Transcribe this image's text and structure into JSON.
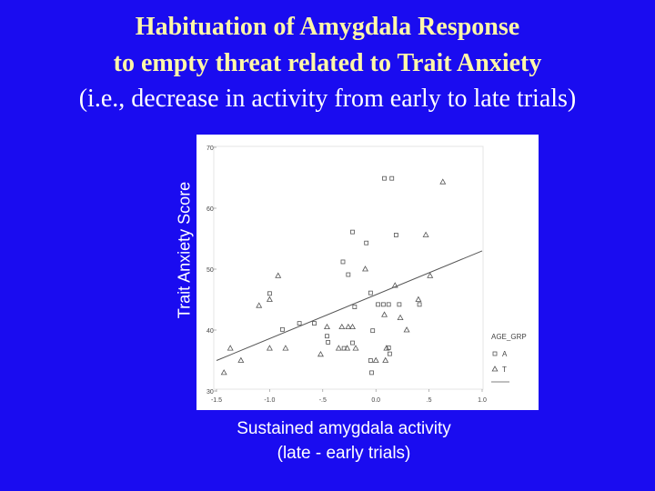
{
  "slide": {
    "title_line1": "Habituation of Amygdala Response",
    "title_line2": "to empty threat related to Trait Anxiety",
    "title_line3": "(i.e., decrease in activity from early to late trials)",
    "xlabel_line1": "Sustained amygdala activity",
    "xlabel_line2": "(late - early trials)",
    "ylabel": "Trait Anxiety Score"
  },
  "colors": {
    "background": "#1a0cf0",
    "title": "#fff7a8",
    "plot_bg": "#ffffff",
    "marker": "#555555"
  },
  "chart_data": {
    "type": "scatter",
    "title": "",
    "xlabel": "Sustained amygdala activity (late - early trials)",
    "ylabel": "Trait Anxiety Score",
    "xlim": [
      -1.5,
      1.0
    ],
    "ylim": [
      30,
      70
    ],
    "xticks": [
      -1.5,
      -1.0,
      -0.5,
      0.0,
      0.5,
      1.0
    ],
    "xtick_labels": [
      "-1.5",
      "-1.0",
      "-.5",
      "0.0",
      ".5",
      "1.0"
    ],
    "yticks": [
      30,
      40,
      50,
      60,
      70
    ],
    "ytick_labels": [
      "30",
      "40",
      "50",
      "60",
      "70"
    ],
    "legend": {
      "title": "AGE_GRP",
      "placement": "bottom-right",
      "entries": [
        "A",
        "T"
      ]
    },
    "series": [
      {
        "name": "A",
        "marker": "square",
        "points": [
          [
            0.08,
            64.9
          ],
          [
            0.15,
            64.9
          ],
          [
            0.19,
            55.6
          ],
          [
            -0.22,
            56.1
          ],
          [
            -0.09,
            54.3
          ],
          [
            -0.31,
            51.2
          ],
          [
            -0.26,
            49.1
          ],
          [
            -1.0,
            46.0
          ],
          [
            -0.05,
            46.1
          ],
          [
            0.02,
            44.2
          ],
          [
            0.07,
            44.2
          ],
          [
            0.12,
            44.2
          ],
          [
            0.22,
            44.2
          ],
          [
            0.41,
            44.2
          ],
          [
            -0.88,
            40.1
          ],
          [
            -0.72,
            41.1
          ],
          [
            -0.58,
            41.1
          ],
          [
            -0.2,
            43.8
          ],
          [
            -0.46,
            39.0
          ],
          [
            -0.45,
            38.0
          ],
          [
            -0.3,
            37.0
          ],
          [
            -0.22,
            37.9
          ],
          [
            -0.03,
            39.9
          ],
          [
            -0.05,
            35.0
          ],
          [
            0.12,
            37.1
          ],
          [
            0.13,
            36.1
          ],
          [
            -0.04,
            33.0
          ]
        ]
      },
      {
        "name": "T",
        "marker": "triangle",
        "points": [
          [
            0.63,
            64.3
          ],
          [
            0.47,
            55.6
          ],
          [
            -0.92,
            48.9
          ],
          [
            0.51,
            48.9
          ],
          [
            -1.0,
            45.0
          ],
          [
            -0.1,
            50.0
          ],
          [
            0.18,
            47.3
          ],
          [
            0.4,
            45.0
          ],
          [
            -1.1,
            44.0
          ],
          [
            0.08,
            42.5
          ],
          [
            0.23,
            42.0
          ],
          [
            -0.46,
            40.5
          ],
          [
            -0.32,
            40.5
          ],
          [
            -0.26,
            40.5
          ],
          [
            -0.22,
            40.5
          ],
          [
            0.29,
            40.0
          ],
          [
            -1.37,
            37.0
          ],
          [
            -1.0,
            37.0
          ],
          [
            -0.85,
            37.0
          ],
          [
            -0.35,
            37.0
          ],
          [
            -0.27,
            37.0
          ],
          [
            -0.19,
            37.0
          ],
          [
            0.1,
            37.0
          ],
          [
            -0.52,
            36.0
          ],
          [
            -1.27,
            35.0
          ],
          [
            0.0,
            35.0
          ],
          [
            0.09,
            35.0
          ],
          [
            -1.43,
            33.0
          ]
        ]
      }
    ],
    "fit_line": {
      "x": [
        -1.5,
        1.0
      ],
      "y": [
        35.0,
        53.0
      ]
    }
  }
}
